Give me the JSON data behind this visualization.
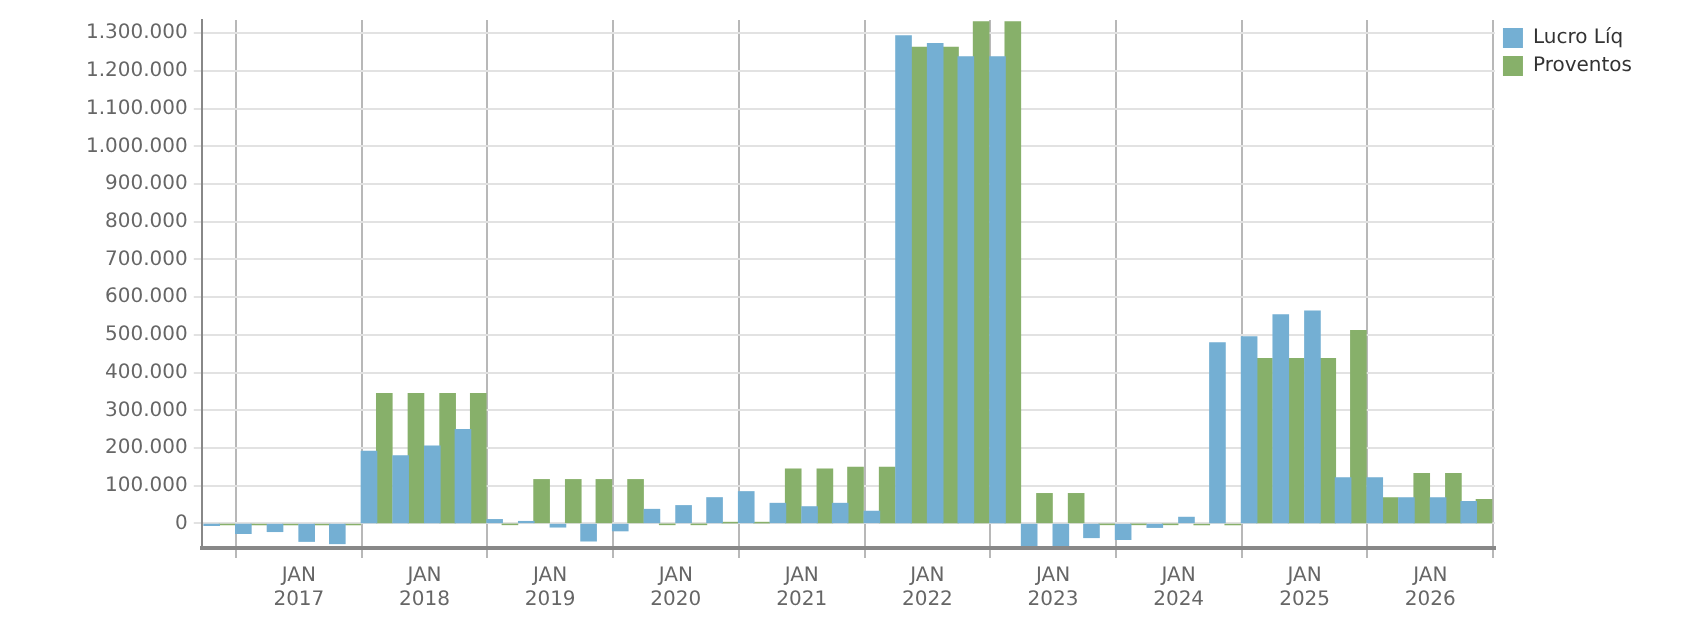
{
  "chart_data": {
    "type": "bar",
    "x": [
      "2016-05-15",
      "2016-08-15",
      "2016-11-15",
      "2017-02-15",
      "2017-05-15",
      "2017-08-15",
      "2017-11-15",
      "2018-02-15",
      "2018-05-15",
      "2018-08-15",
      "2018-11-15",
      "2019-02-15",
      "2019-05-15",
      "2019-08-15",
      "2019-11-15",
      "2020-02-15",
      "2020-05-15",
      "2020-08-15",
      "2020-11-15",
      "2021-02-15",
      "2021-05-15",
      "2021-08-15",
      "2021-11-15",
      "2022-02-15",
      "2022-05-15",
      "2022-08-15",
      "2022-11-15",
      "2023-02-15",
      "2023-05-15",
      "2023-08-15",
      "2023-11-15",
      "2024-02-15",
      "2024-05-15",
      "2024-08-15",
      "2024-11-15",
      "2025-02-15",
      "2025-05-15",
      "2025-08-15",
      "2025-11-15",
      "2026-02-15",
      "2026-05-15"
    ],
    "series": [
      {
        "name": "Lucro Líq",
        "color": "#74afd3",
        "values": [
          -5000,
          -26000,
          -21000,
          -47000,
          -53000,
          191000,
          179000,
          205000,
          249000,
          10000,
          5000,
          -9000,
          -46000,
          -19000,
          37000,
          47000,
          68000,
          84000,
          53000,
          44000,
          53000,
          32000,
          1293000,
          1272000,
          1237000,
          1237000,
          -58000,
          -58000,
          -37000,
          -42000,
          -10000,
          16000,
          479000,
          495000,
          553000,
          563000,
          121000,
          121000,
          68000,
          68000,
          58000
        ]
      },
      {
        "name": "Proventos",
        "color": "#87b06a",
        "values": [
          -3000,
          -3000,
          -3000,
          -3000,
          -3000,
          344000,
          344000,
          344000,
          344000,
          -2000,
          116000,
          116000,
          116000,
          116000,
          -2000,
          -2000,
          2000,
          2000,
          144000,
          144000,
          149000,
          149000,
          1262000,
          1262000,
          1330000,
          1330000,
          79000,
          79000,
          -2000,
          -2000,
          -2000,
          -3000,
          -3000,
          437000,
          437000,
          437000,
          511000,
          68000,
          132000,
          132000,
          63000
        ]
      }
    ],
    "xlim": [
      "2016-03-25",
      "2026-07-08"
    ],
    "xticks": [
      {
        "value": "2017-01-01",
        "label": "JAN 2017"
      },
      {
        "value": "2018-01-01",
        "label": "JAN 2018"
      },
      {
        "value": "2019-01-01",
        "label": "JAN 2019"
      },
      {
        "value": "2020-01-01",
        "label": "JAN 2020"
      },
      {
        "value": "2021-01-01",
        "label": "JAN 2021"
      },
      {
        "value": "2022-01-01",
        "label": "JAN 2022"
      },
      {
        "value": "2023-01-01",
        "label": "JAN 2023"
      },
      {
        "value": "2024-01-01",
        "label": "JAN 2024"
      },
      {
        "value": "2025-01-01",
        "label": "JAN 2025"
      },
      {
        "value": "2026-01-01",
        "label": "JAN 2026"
      }
    ],
    "ylim": [
      -65000,
      1335000
    ],
    "yticks": [
      0,
      {
        "value": 100000,
        "label": "100.000"
      },
      {
        "value": 200000,
        "label": "200.000"
      },
      {
        "value": 300000,
        "label": "300.000"
      },
      {
        "value": 400000,
        "label": "400.000"
      },
      {
        "value": 500000,
        "label": "500.000"
      },
      {
        "value": 600000,
        "label": "600.000"
      },
      {
        "value": 700000,
        "label": "700.000"
      },
      {
        "value": 800000,
        "label": "800.000"
      },
      {
        "value": 900000,
        "label": "900.000"
      },
      {
        "value": 1000000,
        "label": "1.000.000"
      },
      {
        "value": 1100000,
        "label": "1.100.000"
      },
      {
        "value": 1200000,
        "label": "1.200.000"
      },
      {
        "value": 1300000,
        "label": "1.300.000"
      }
    ],
    "grid": true,
    "legend": "top right"
  }
}
